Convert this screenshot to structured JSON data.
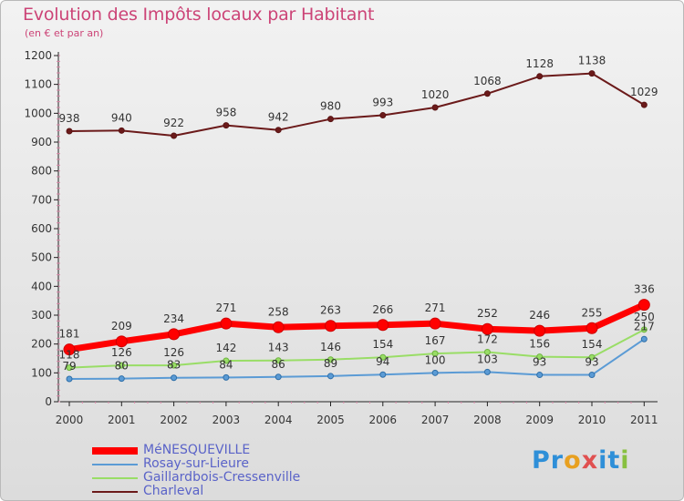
{
  "chart_data": {
    "type": "line",
    "title": "Evolution des Impôts locaux par Habitant",
    "subtitle": "(en € et par an)",
    "xlabel": "",
    "ylabel": "",
    "ylim": [
      0,
      1200
    ],
    "yticks": [
      0,
      100,
      200,
      300,
      400,
      500,
      600,
      700,
      800,
      900,
      1000,
      1100,
      1200
    ],
    "grid": false,
    "legend_position": "bottom-left",
    "categories": [
      "2000",
      "2001",
      "2002",
      "2003",
      "2004",
      "2005",
      "2006",
      "2007",
      "2008",
      "2009",
      "2010",
      "2011"
    ],
    "series": [
      {
        "name": "Charleval",
        "color": "#6b1a1a",
        "values": [
          938,
          940,
          922,
          958,
          942,
          980,
          993,
          1020,
          1068,
          1128,
          1138,
          1029
        ],
        "labels": [
          "938",
          "940",
          "922",
          "958",
          "942",
          "980",
          "993",
          "1020",
          "1068",
          "1128",
          "1138",
          "1029"
        ]
      },
      {
        "name": "Gaillardbois-Cressenville",
        "color": "#99dd66",
        "values": [
          118,
          126,
          126,
          142,
          143,
          146,
          154,
          167,
          172,
          156,
          154,
          250
        ],
        "labels": [
          "118",
          "126",
          "126",
          "142",
          "143",
          "146",
          "154",
          "167",
          "172",
          "156",
          "154",
          "250"
        ]
      },
      {
        "name": "Rosay-sur-Lieure",
        "color": "#5b9bd5",
        "values": [
          79,
          80,
          83,
          84,
          86,
          89,
          94,
          100,
          103,
          93,
          93,
          217
        ],
        "labels": [
          "79",
          "80",
          "83",
          "84",
          "86",
          "89",
          "94",
          "100",
          "103",
          "93",
          "93",
          "217"
        ]
      },
      {
        "name": "MéNESQUEVILLE",
        "color": "#ff0000",
        "values": [
          181,
          209,
          234,
          271,
          258,
          263,
          266,
          271,
          252,
          246,
          255,
          336
        ],
        "labels": [
          "181",
          "209",
          "234",
          "271",
          "258",
          "263",
          "266",
          "271",
          "252",
          "246",
          "255",
          "336"
        ]
      }
    ]
  },
  "legend": [
    {
      "name": "MéNESQUEVILLE",
      "color": "#ff0000"
    },
    {
      "name": "Rosay-sur-Lieure",
      "color": "#5b9bd5"
    },
    {
      "name": "Gaillardbois-Cressenville",
      "color": "#99dd66"
    },
    {
      "name": "Charleval",
      "color": "#6b1a1a"
    }
  ],
  "brand": {
    "text": "Proxiti",
    "letters": [
      {
        "ch": "P",
        "color": "#2e8fd8"
      },
      {
        "ch": "r",
        "color": "#2e8fd8"
      },
      {
        "ch": "o",
        "color": "#e8a020"
      },
      {
        "ch": "x",
        "color": "#e05050"
      },
      {
        "ch": "i",
        "color": "#2e8fd8"
      },
      {
        "ch": "t",
        "color": "#2e8fd8"
      },
      {
        "ch": "i",
        "color": "#88c040"
      }
    ]
  }
}
